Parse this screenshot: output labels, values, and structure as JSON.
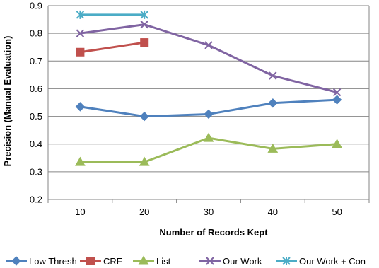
{
  "chart_data": {
    "type": "line",
    "title": "",
    "xlabel": "Number of Records Kept",
    "ylabel": "Precision (Manual Evaluation)",
    "categories": [
      "10",
      "20",
      "30",
      "40",
      "50"
    ],
    "ylim": [
      0.2,
      0.9
    ],
    "yticks": [
      "0.2",
      "0.3",
      "0.4",
      "0.5",
      "0.6",
      "0.7",
      "0.8",
      "0.9"
    ],
    "grid": true,
    "legend_position": "bottom",
    "series": [
      {
        "name": "Low Thresh",
        "color": "#4f81bd",
        "marker": "diamond",
        "values": [
          0.535,
          0.5,
          0.508,
          0.548,
          0.56
        ]
      },
      {
        "name": "CRF",
        "color": "#c0504d",
        "marker": "square",
        "values": [
          0.732,
          0.767,
          null,
          null,
          null
        ]
      },
      {
        "name": "List",
        "color": "#9bbb59",
        "marker": "triangle",
        "values": [
          0.335,
          0.335,
          0.422,
          0.383,
          0.4
        ]
      },
      {
        "name": "Our Work",
        "color": "#8064a2",
        "marker": "x",
        "values": [
          0.8,
          0.832,
          0.757,
          0.647,
          0.587
        ]
      },
      {
        "name": "Our Work + Con",
        "color": "#4bacc6",
        "marker": "star",
        "values": [
          0.867,
          0.867,
          null,
          null,
          null
        ]
      }
    ]
  }
}
